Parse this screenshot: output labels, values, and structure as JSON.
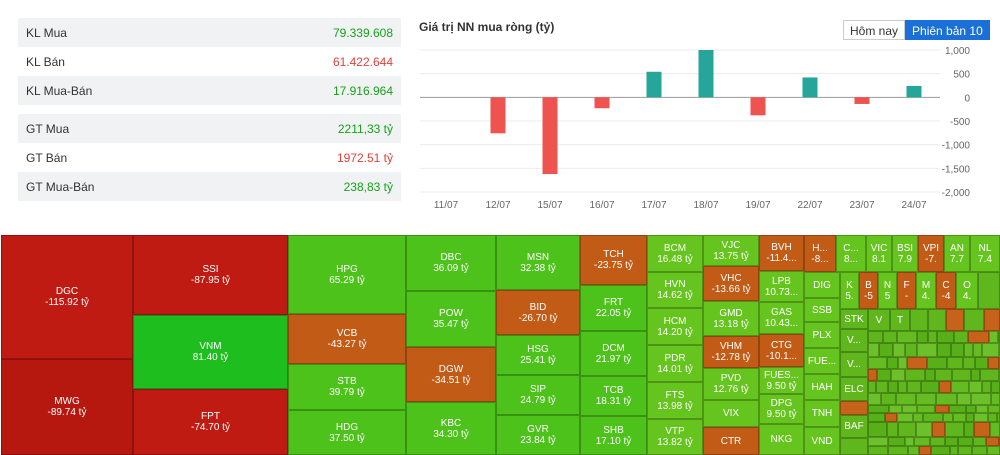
{
  "stats": [
    {
      "label": "KL Mua",
      "value": "79.339.608",
      "color": "green"
    },
    {
      "label": "KL Bán",
      "value": "61.422.644",
      "color": "red"
    },
    {
      "label": "KL Mua-Bán",
      "value": "17.916.964",
      "color": "green"
    },
    {
      "label": "GT Mua",
      "value": "2211,33 tỷ",
      "color": "green"
    },
    {
      "label": "GT Bán",
      "value": "1972.51 tỷ",
      "color": "red"
    },
    {
      "label": "GT Mua-Bán",
      "value": "238,83 tỷ",
      "color": "green"
    }
  ],
  "chart_title": "Giá trị NN mua ròng (tỷ)",
  "buttons": {
    "today": "Hôm nay",
    "session": "Phiên bản 10"
  },
  "chart_data": {
    "type": "bar",
    "categories": [
      "11/07",
      "12/07",
      "15/07",
      "16/07",
      "17/07",
      "18/07",
      "19/07",
      "22/07",
      "23/07",
      "24/07"
    ],
    "values": [
      0,
      -760,
      -1620,
      -230,
      540,
      1000,
      -380,
      420,
      -140,
      240
    ],
    "ylim": [
      -2000,
      1000
    ],
    "yticks": [
      "1,000",
      "500",
      "0",
      "-500",
      "-1,000",
      "-1,500",
      "-2,000"
    ],
    "positive_color": "#26a69a",
    "negative_color": "#ef5350"
  },
  "treemap": {
    "DGC": {
      "name": "DGC",
      "val": "-115.92 tỷ"
    },
    "MWG": {
      "name": "MWG",
      "val": "-89.74 tỷ"
    },
    "SSI": {
      "name": "SSI",
      "val": "-87.95 tỷ"
    },
    "VNM": {
      "name": "VNM",
      "val": "81.40 tỷ"
    },
    "FPT": {
      "name": "FPT",
      "val": "-74.70 tỷ"
    },
    "HPG": {
      "name": "HPG",
      "val": "65.29 tỷ"
    },
    "VCB": {
      "name": "VCB",
      "val": "-43.27 tỷ"
    },
    "STB": {
      "name": "STB",
      "val": "39.79 tỷ"
    },
    "HDG": {
      "name": "HDG",
      "val": "37.50 tỷ"
    },
    "DBC": {
      "name": "DBC",
      "val": "36.09 tỷ"
    },
    "POW": {
      "name": "POW",
      "val": "35.47 tỷ"
    },
    "DGW": {
      "name": "DGW",
      "val": "-34.51 tỷ"
    },
    "KBC": {
      "name": "KBC",
      "val": "34.30 tỷ"
    },
    "MSN": {
      "name": "MSN",
      "val": "32.38 tỷ"
    },
    "BID": {
      "name": "BID",
      "val": "-26.70 tỷ"
    },
    "HSG": {
      "name": "HSG",
      "val": "25.41 tỷ"
    },
    "SIP": {
      "name": "SIP",
      "val": "24.79 tỷ"
    },
    "GVR": {
      "name": "GVR",
      "val": "23.84 tỷ"
    },
    "TCH": {
      "name": "TCH",
      "val": "-23.75 tỷ"
    },
    "FRT": {
      "name": "FRT",
      "val": "22.05 tỷ"
    },
    "DCM": {
      "name": "DCM",
      "val": "21.97 tỷ"
    },
    "TCB": {
      "name": "TCB",
      "val": "18.31 tỷ"
    },
    "SHB": {
      "name": "SHB",
      "val": "17.10 tỷ"
    },
    "BCM": {
      "name": "BCM",
      "val": "16.48 tỷ"
    },
    "HVN": {
      "name": "HVN",
      "val": "14.62 tỷ"
    },
    "HCM": {
      "name": "HCM",
      "val": "14.20 tỷ"
    },
    "PDR": {
      "name": "PDR",
      "val": "14.01 tỷ"
    },
    "FTS": {
      "name": "FTS",
      "val": "13.98 tỷ"
    },
    "VTP": {
      "name": "VTP",
      "val": "13.82 tỷ"
    },
    "VJC": {
      "name": "VJC",
      "val": "13.75 tỷ"
    },
    "VHC": {
      "name": "VHC",
      "val": "-13.66 tỷ"
    },
    "GMD": {
      "name": "GMD",
      "val": "13.18 tỷ"
    },
    "VHM": {
      "name": "VHM",
      "val": "-12.78 tỷ"
    },
    "PVD": {
      "name": "PVD",
      "val": "12.76 tỷ"
    },
    "VIX": {
      "name": "VIX",
      "val": ""
    },
    "CTR": {
      "name": "CTR",
      "val": ""
    },
    "BVH": {
      "name": "BVH",
      "val": "-11.4..."
    },
    "LPB": {
      "name": "LPB",
      "val": "10.73..."
    },
    "GAS": {
      "name": "GAS",
      "val": "10.43..."
    },
    "CTG": {
      "name": "CTG",
      "val": "-10.1..."
    },
    "FUES": {
      "name": "FUES...",
      "val": "9.50 tỷ"
    },
    "DPG": {
      "name": "DPG",
      "val": "9.50 tỷ"
    },
    "NKG": {
      "name": "NKG",
      "val": ""
    },
    "H": {
      "name": "H...",
      "val": "-8..."
    },
    "DIG": {
      "name": "DIG",
      "val": ""
    },
    "SSB": {
      "name": "SSB",
      "val": ""
    },
    "PLX": {
      "name": "PLX",
      "val": ""
    },
    "FUE": {
      "name": "FUE...",
      "val": ""
    },
    "HAH": {
      "name": "HAH",
      "val": ""
    },
    "TNH": {
      "name": "TNH",
      "val": ""
    },
    "VND": {
      "name": "VND",
      "val": ""
    },
    "C": {
      "name": "C...",
      "val": "8..."
    },
    "VIC": {
      "name": "VIC",
      "val": "8.1"
    },
    "BSI": {
      "name": "BSI",
      "val": "7.9"
    },
    "VPI": {
      "name": "VPI",
      "val": "-7."
    },
    "AN": {
      "name": "AN",
      "val": "7.7"
    },
    "NL": {
      "name": "NL",
      "val": "7.4"
    },
    "K": {
      "name": "K",
      "val": "5."
    },
    "B": {
      "name": "B",
      "val": "-5"
    },
    "N": {
      "name": "N",
      "val": "5"
    },
    "F": {
      "name": "F",
      "val": "-"
    },
    "M": {
      "name": "M",
      "val": "4."
    },
    "C2": {
      "name": "C",
      "val": "-4"
    },
    "O": {
      "name": "O",
      "val": "4."
    },
    "STK": {
      "name": "STK",
      "val": ""
    },
    "V1": {
      "name": "V...",
      "val": ""
    },
    "ELC": {
      "name": "ELC",
      "val": ""
    },
    "V2": {
      "name": "V...",
      "val": ""
    },
    "BAF": {
      "name": "BAF",
      "val": ""
    },
    "Vs": {
      "name": "V",
      "val": ""
    },
    "Ts": {
      "name": "T",
      "val": ""
    }
  }
}
